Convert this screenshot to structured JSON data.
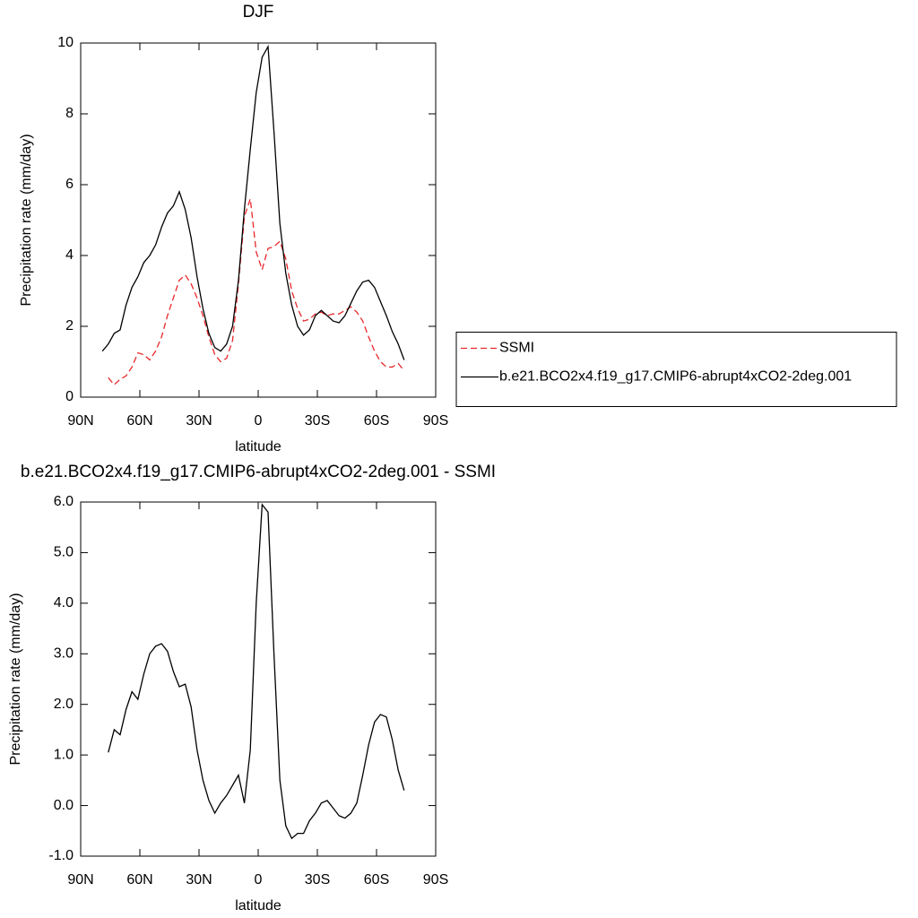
{
  "chart_data": [
    {
      "type": "line",
      "title": "DJF",
      "xlabel": "latitude",
      "ylabel": "Precipitation rate (mm/day)",
      "x": [
        79,
        76,
        73,
        70,
        67,
        64,
        61,
        58,
        55,
        52,
        49,
        46,
        43,
        40,
        37,
        34,
        31,
        28,
        25,
        22,
        19,
        16,
        13,
        10,
        7,
        4,
        1,
        -2,
        -5,
        -8,
        -11,
        -14,
        -17,
        -20,
        -23,
        -26,
        -29,
        -32,
        -35,
        -38,
        -41,
        -44,
        -47,
        -50,
        -53,
        -56,
        -59,
        -62,
        -65,
        -68,
        -71,
        -74
      ],
      "xlim": [
        90,
        -90
      ],
      "xticks": [
        {
          "value": 90,
          "label": "90N"
        },
        {
          "value": 60,
          "label": "60N"
        },
        {
          "value": 30,
          "label": "30N"
        },
        0,
        {
          "value": -30,
          "label": "30S"
        },
        {
          "value": -60,
          "label": "60S"
        },
        {
          "value": -90,
          "label": "90S"
        }
      ],
      "ylim": [
        0,
        10
      ],
      "yticks": [
        0,
        2,
        4,
        6,
        8,
        10
      ],
      "legend": "right",
      "series": [
        {
          "name": "SSMI",
          "color": "#e8282a",
          "line_style": "dashed",
          "values": [
            null,
            0.55,
            0.35,
            0.5,
            0.6,
            0.85,
            1.25,
            1.2,
            1.05,
            1.3,
            1.7,
            2.3,
            2.8,
            3.3,
            3.45,
            3.2,
            2.8,
            2.3,
            1.7,
            1.2,
            1.0,
            1.1,
            1.6,
            3.2,
            5.1,
            5.6,
            4.1,
            3.6,
            4.2,
            4.25,
            4.4,
            3.9,
            3.0,
            2.5,
            2.15,
            2.2,
            2.35,
            2.4,
            2.3,
            2.35,
            2.35,
            2.45,
            2.55,
            2.4,
            2.15,
            1.7,
            1.3,
            1.0,
            0.85,
            0.85,
            0.95,
            0.75
          ]
        },
        {
          "name": "b.e21.BCO2x4.f19_g17.CMIP6-abrupt4xCO2-2deg.001",
          "color": "#000000",
          "line_style": "solid",
          "values": [
            1.3,
            1.5,
            1.8,
            1.9,
            2.6,
            3.1,
            3.4,
            3.8,
            4.0,
            4.3,
            4.8,
            5.2,
            5.4,
            5.8,
            5.3,
            4.5,
            3.4,
            2.5,
            1.8,
            1.4,
            1.3,
            1.5,
            2.0,
            3.3,
            5.3,
            7.0,
            8.6,
            9.6,
            9.9,
            7.5,
            4.9,
            3.5,
            2.6,
            2.0,
            1.75,
            1.9,
            2.3,
            2.45,
            2.3,
            2.15,
            2.1,
            2.3,
            2.65,
            3.0,
            3.25,
            3.3,
            3.1,
            2.7,
            2.3,
            1.85,
            1.5,
            1.05
          ]
        }
      ]
    },
    {
      "type": "line",
      "title": "b.e21.BCO2x4.f19_g17.CMIP6-abrupt4xCO2-2deg.001 - SSMI",
      "xlabel": "latitude",
      "ylabel": "Precipitation rate (mm/day)",
      "x": [
        76,
        73,
        70,
        67,
        64,
        61,
        58,
        55,
        52,
        49,
        46,
        43,
        40,
        37,
        34,
        31,
        28,
        25,
        22,
        19,
        16,
        13,
        10,
        7,
        4,
        1,
        -2,
        -5,
        -8,
        -11,
        -14,
        -17,
        -20,
        -23,
        -26,
        -29,
        -32,
        -35,
        -38,
        -41,
        -44,
        -47,
        -50,
        -53,
        -56,
        -59,
        -62,
        -65,
        -68,
        -71,
        -74
      ],
      "xlim": [
        90,
        -90
      ],
      "xticks": [
        {
          "value": 90,
          "label": "90N"
        },
        {
          "value": 60,
          "label": "60N"
        },
        {
          "value": 30,
          "label": "30N"
        },
        0,
        {
          "value": -30,
          "label": "30S"
        },
        {
          "value": -60,
          "label": "60S"
        },
        {
          "value": -90,
          "label": "90S"
        }
      ],
      "ylim": [
        -1,
        6
      ],
      "yticks": [
        {
          "value": -1,
          "label": "-1.0"
        },
        {
          "value": 0,
          "label": "0.0"
        },
        {
          "value": 1,
          "label": "1.0"
        },
        {
          "value": 2,
          "label": "2.0"
        },
        {
          "value": 3,
          "label": "3.0"
        },
        {
          "value": 4,
          "label": "4.0"
        },
        {
          "value": 5,
          "label": "5.0"
        },
        {
          "value": 6,
          "label": "6.0"
        }
      ],
      "color": "#000000",
      "values": [
        1.05,
        1.5,
        1.4,
        1.9,
        2.25,
        2.1,
        2.6,
        3.0,
        3.15,
        3.2,
        3.05,
        2.65,
        2.35,
        2.4,
        1.95,
        1.1,
        0.5,
        0.1,
        -0.15,
        0.05,
        0.2,
        0.4,
        0.6,
        0.05,
        1.1,
        4.0,
        5.95,
        5.8,
        3.0,
        0.5,
        -0.4,
        -0.65,
        -0.55,
        -0.55,
        -0.3,
        -0.15,
        0.05,
        0.1,
        -0.05,
        -0.2,
        -0.25,
        -0.15,
        0.05,
        0.6,
        1.2,
        1.65,
        1.8,
        1.75,
        1.3,
        0.7,
        0.3
      ]
    }
  ]
}
